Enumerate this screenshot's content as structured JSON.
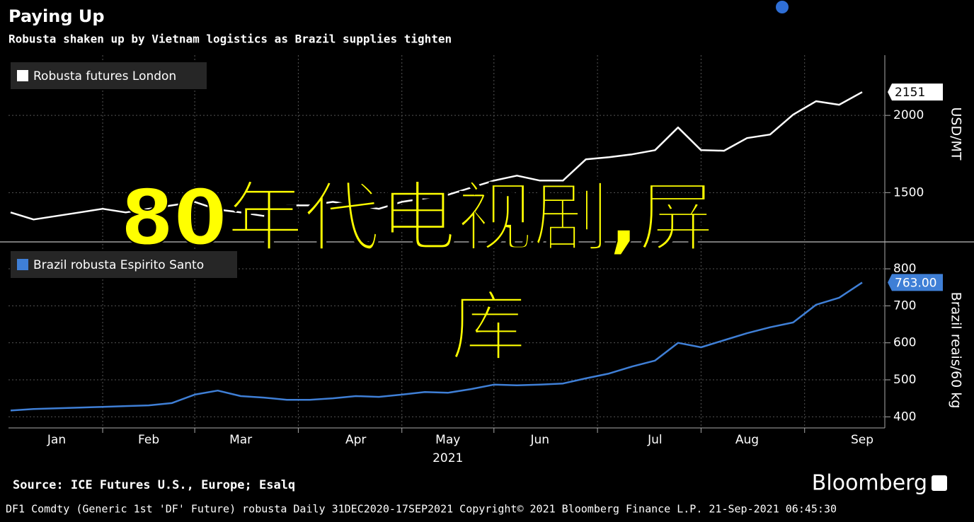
{
  "title": "Paying Up",
  "subtitle": "Robusta shaken up by Vietnam logistics as Brazil supplies tighten",
  "chart_data": [
    {
      "type": "line",
      "y_axis_label": "USD/MT",
      "series": [
        {
          "name": "Robusta futures London",
          "color": "#ffffff",
          "values": [
            1372,
            1326,
            1349,
            1372,
            1395,
            1372,
            1395,
            1417,
            1440,
            1390,
            1372,
            1349,
            1417,
            1417,
            1440,
            1417,
            1395,
            1440,
            1463,
            1486,
            1532,
            1578,
            1610,
            1578,
            1578,
            1716,
            1729,
            1748,
            1775,
            1922,
            1775,
            1771,
            1853,
            1876,
            2005,
            2092,
            2069,
            2151
          ]
        }
      ],
      "ylim": [
        1190,
        2390
      ],
      "yticks": [
        1500,
        2000
      ],
      "grid": true
    },
    {
      "type": "line",
      "y_axis_label": "Brazil reais/60 kg",
      "xlabel": "2021",
      "categories": [
        null,
        null,
        "Jan",
        null,
        null,
        null,
        "Feb",
        null,
        null,
        null,
        "Mar",
        null,
        null,
        null,
        null,
        "Apr",
        null,
        null,
        null,
        "May",
        null,
        null,
        null,
        "Jun",
        null,
        null,
        null,
        null,
        "Jul",
        null,
        null,
        null,
        "Aug",
        null,
        null,
        null,
        null,
        "Sep"
      ],
      "series": [
        {
          "name": "Brazil robusta Espirito Santo",
          "color": "#3f7fd6",
          "values": [
            417,
            421,
            423,
            425,
            427,
            429,
            431,
            437,
            460,
            471,
            456,
            452,
            446,
            446,
            450,
            456,
            454,
            460,
            467,
            465,
            475,
            487,
            485,
            487,
            490,
            504,
            517,
            536,
            552,
            600,
            588,
            607,
            626,
            642,
            655,
            703,
            722,
            763
          ],
          "value_labels": [
            null,
            null,
            null,
            null,
            null,
            null,
            null,
            null,
            null,
            null,
            null,
            null,
            null,
            null,
            null,
            null,
            null,
            null,
            null,
            null,
            null,
            null,
            null,
            null,
            null,
            null,
            null,
            null,
            null,
            null,
            null,
            null,
            null,
            null,
            null,
            null,
            null,
            "763.00"
          ]
        }
      ],
      "ylim": [
        370,
        867
      ],
      "yticks": [
        400,
        500,
        600,
        700,
        800
      ],
      "grid": true
    }
  ],
  "overlay": [
    "80年代电视剧,屏",
    "库"
  ],
  "source": "Source: ICE Futures U.S., Europe; Esalq",
  "brand": "Bloomberg",
  "footer": "DF1 Comdty (Generic 1st 'DF' Future) robusta  Daily 31DEC2020-17SEP2021  Copyright© 2021 Bloomberg Finance L.P.  21-Sep-2021 06:45:30"
}
